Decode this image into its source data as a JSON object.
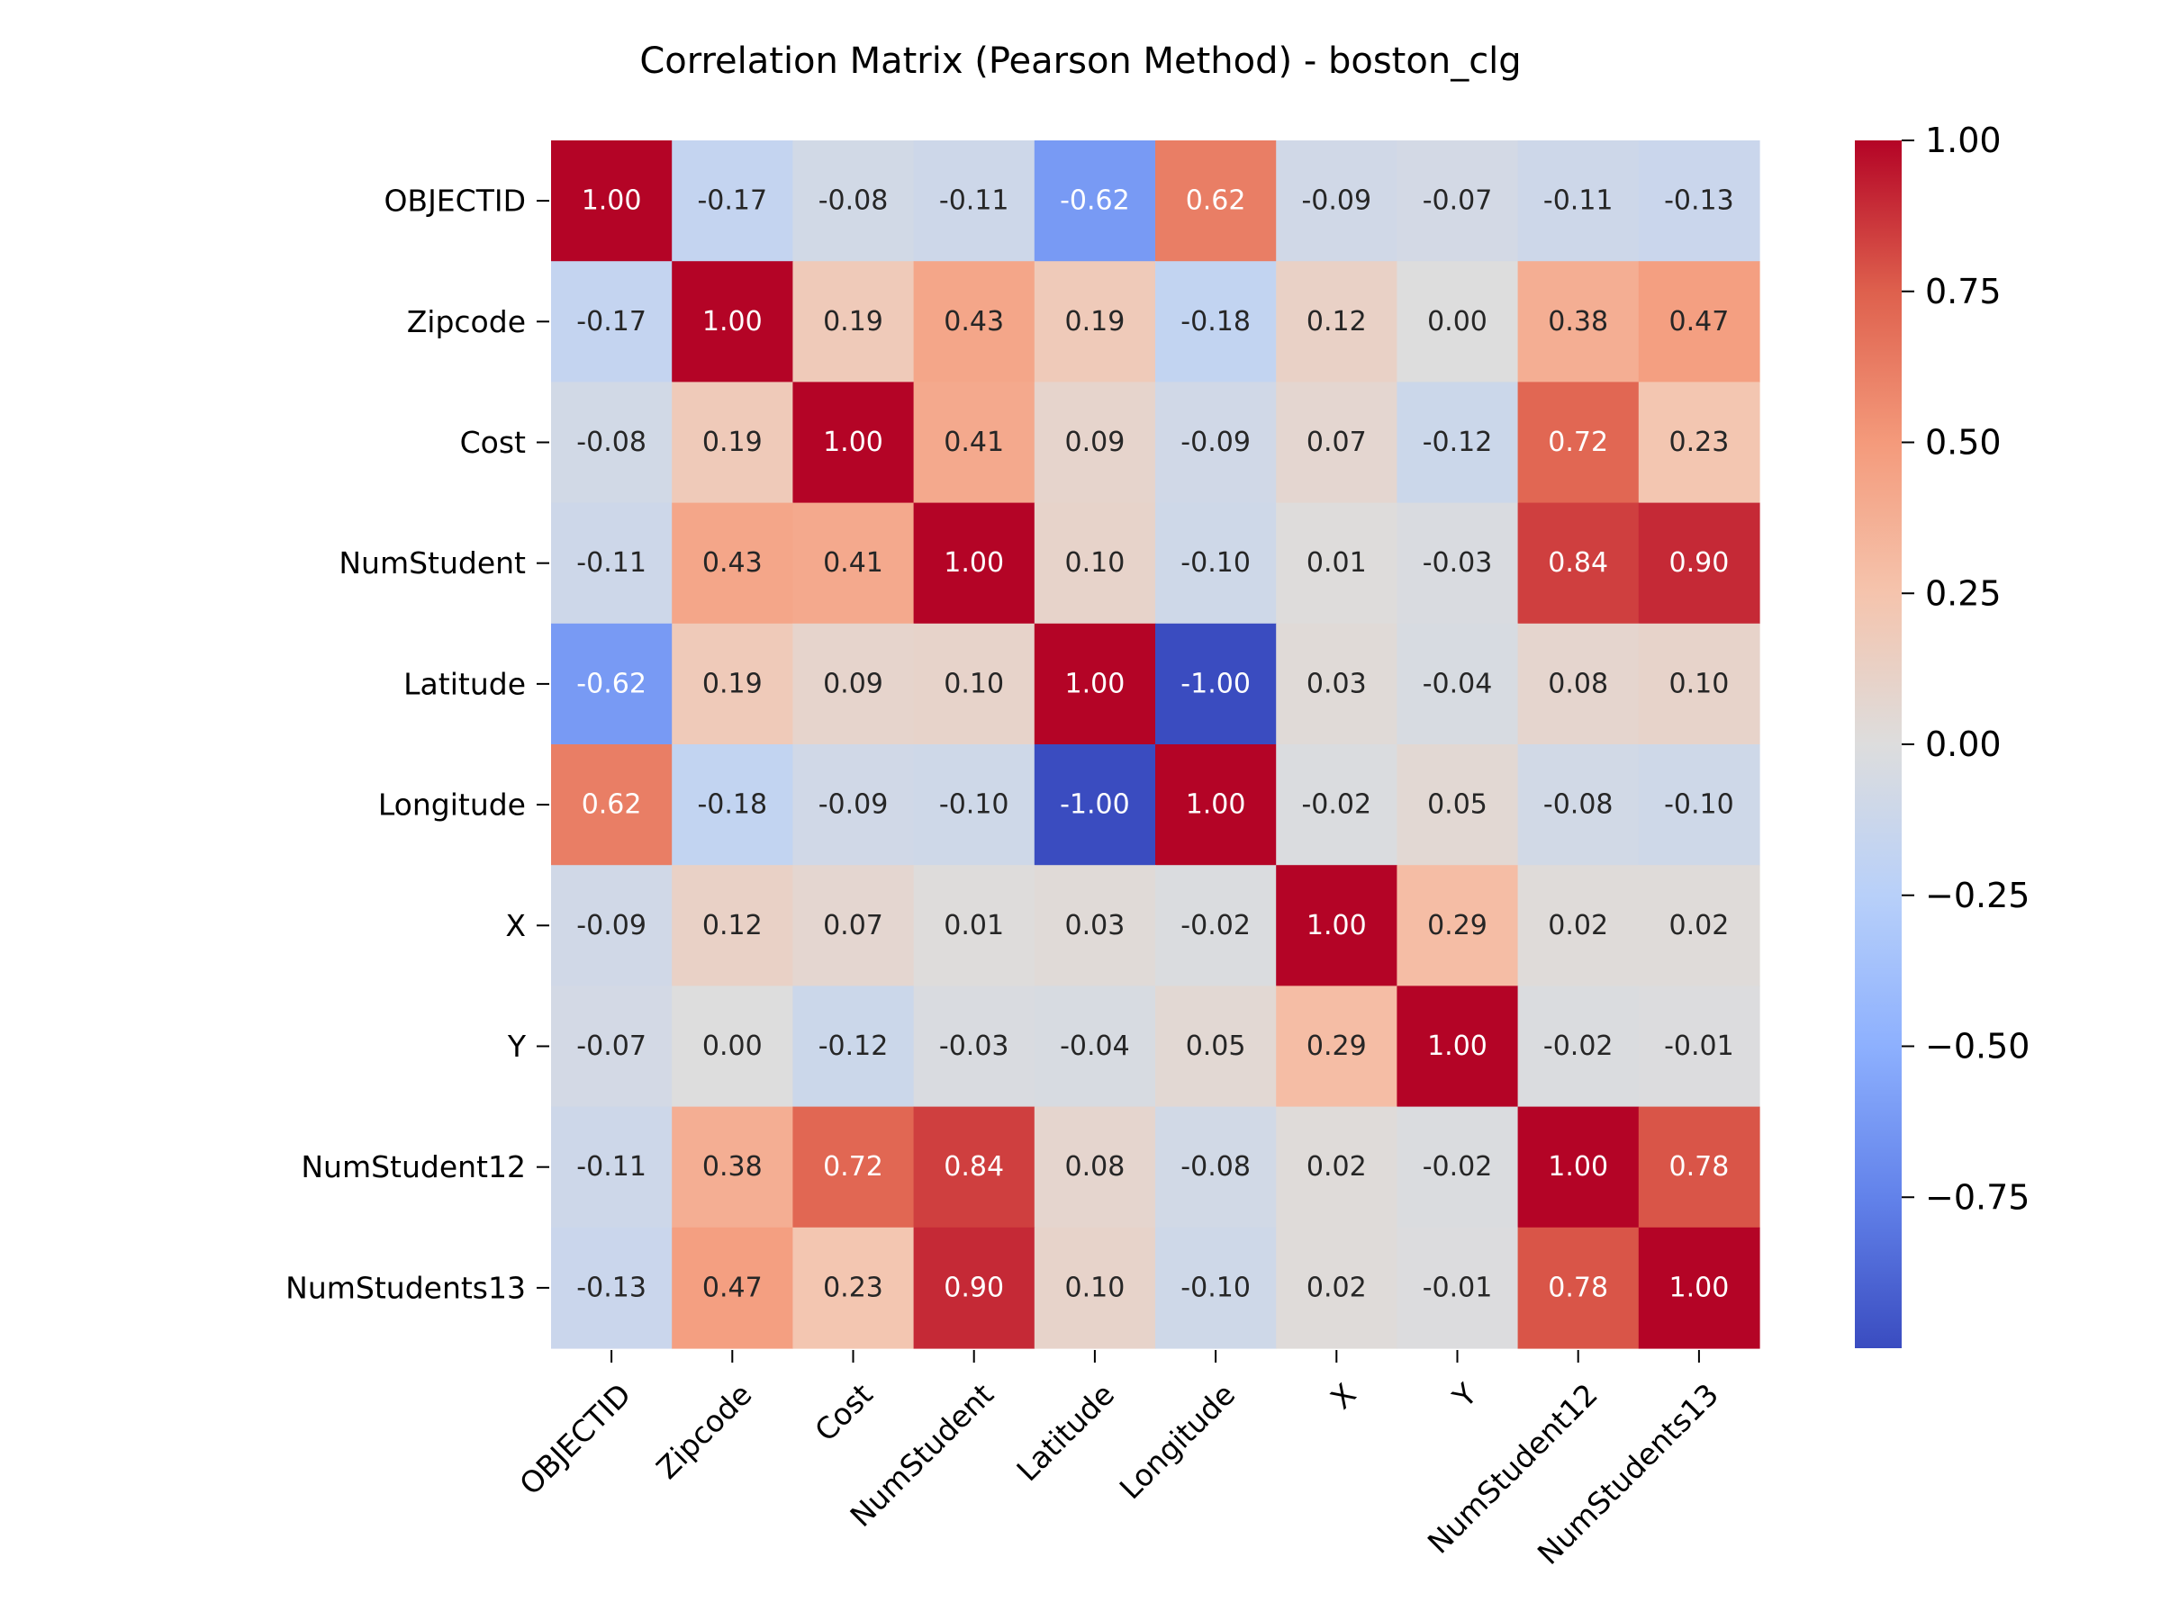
{
  "chart_data": {
    "type": "heatmap",
    "title": "Correlation Matrix (Pearson Method) - boston_clg",
    "row_labels": [
      "OBJECTID",
      "Zipcode",
      "Cost",
      "NumStudent",
      "Latitude",
      "Longitude",
      "X",
      "Y",
      "NumStudent12",
      "NumStudents13"
    ],
    "col_labels": [
      "OBJECTID",
      "Zipcode",
      "Cost",
      "NumStudent",
      "Latitude",
      "Longitude",
      "X",
      "Y",
      "NumStudent12",
      "NumStudents13"
    ],
    "values": [
      [
        1.0,
        -0.17,
        -0.08,
        -0.11,
        -0.62,
        0.62,
        -0.09,
        -0.07,
        -0.11,
        -0.13
      ],
      [
        -0.17,
        1.0,
        0.19,
        0.43,
        0.19,
        -0.18,
        0.12,
        0.0,
        0.38,
        0.47
      ],
      [
        -0.08,
        0.19,
        1.0,
        0.41,
        0.09,
        -0.09,
        0.07,
        -0.12,
        0.72,
        0.23
      ],
      [
        -0.11,
        0.43,
        0.41,
        1.0,
        0.1,
        -0.1,
        0.01,
        -0.03,
        0.84,
        0.9
      ],
      [
        -0.62,
        0.19,
        0.09,
        0.1,
        1.0,
        -1.0,
        0.03,
        -0.04,
        0.08,
        0.1
      ],
      [
        0.62,
        -0.18,
        -0.09,
        -0.1,
        -1.0,
        1.0,
        -0.02,
        0.05,
        -0.08,
        -0.1
      ],
      [
        -0.09,
        0.12,
        0.07,
        0.01,
        0.03,
        -0.02,
        1.0,
        0.29,
        0.02,
        0.02
      ],
      [
        -0.07,
        0.0,
        -0.12,
        -0.03,
        -0.04,
        0.05,
        0.29,
        1.0,
        -0.02,
        -0.01
      ],
      [
        -0.11,
        0.38,
        0.72,
        0.84,
        0.08,
        -0.08,
        0.02,
        -0.02,
        1.0,
        0.78
      ],
      [
        -0.13,
        0.47,
        0.23,
        0.9,
        0.1,
        -0.1,
        0.02,
        -0.01,
        0.78,
        1.0
      ]
    ],
    "value_format": "0.00",
    "colormap": "coolwarm",
    "vmin": -1.0,
    "vmax": 1.0,
    "colorbar_ticks": [
      1.0,
      0.75,
      0.5,
      0.25,
      0.0,
      -0.25,
      -0.5,
      -0.75
    ],
    "colorbar_tick_labels": [
      "1.00",
      "0.75",
      "0.50",
      "0.25",
      "0.00",
      "−0.25",
      "−0.50",
      "−0.75"
    ],
    "x_tick_rotation": "45 degrees",
    "legend": "colorbar right"
  }
}
